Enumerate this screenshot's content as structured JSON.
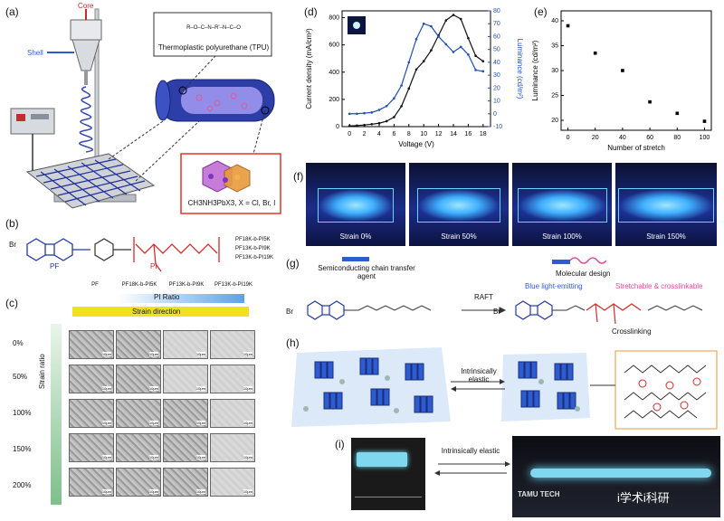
{
  "panel_labels": {
    "a": "(a)",
    "b": "(b)",
    "c": "(c)",
    "d": "(d)",
    "e": "(e)",
    "f": "(f)",
    "g": "(g)",
    "h": "(h)",
    "i": "(i)"
  },
  "panel_a": {
    "core_label": "Core",
    "shell_label": "Shell",
    "polymer_formula": "R–O–C–N–R'–N–C–O",
    "polymer_name": "Thermoplastic polyurethane (TPU)",
    "perovskite_label": "CH3NH3PbX3, X = Cl, Br, I"
  },
  "panel_b": {
    "pf_label": "PF",
    "pi_label": "PI",
    "copolymers": [
      "PF18K-b-PI5K",
      "PF13K-b-PI9K",
      "PF13K-b-PI19K"
    ]
  },
  "panel_c": {
    "column_headers": [
      "PF",
      "PF18K-b-PI5K",
      "PF13K-b-PI9K",
      "PF13K-b-PI19K"
    ],
    "pi_ratio_label": "PI Ratio",
    "strain_direction_label": "Strain direction",
    "strain_ratio_label": "Strain ratio",
    "rows": [
      "0%",
      "50%",
      "100%",
      "150%",
      "200%"
    ],
    "scale_bar": "10μm"
  },
  "panel_f": {
    "captions": [
      "Strain 0%",
      "Strain 50%",
      "Strain 100%",
      "Strain 150%"
    ]
  },
  "panel_g": {
    "chain_transfer_label": "Semiconducting chain transfer agent",
    "molecular_design_label": "Molecular design",
    "raft_label": "RAFT",
    "blue_emitting_label": "Blue light-emitting",
    "stretchable_label": "Stretchable & crosslinkable",
    "crosslinking_label": "Crosslinking"
  },
  "panel_h": {
    "elastic_label": "Intrinsically elastic"
  },
  "panel_i": {
    "elastic_label": "Intrinsically elastic",
    "logo_text": "TAMU TECH",
    "watermark": "i学术i科研"
  },
  "colors": {
    "black_series": "#111111",
    "blue_series": "#1f4fb5",
    "pi_red": "#d12b2b",
    "panel_f_bg": "#1c2d8a"
  },
  "chart_data": [
    {
      "type": "line",
      "panel": "d",
      "xlabel": "Voltage (V)",
      "ylabel": "Current density (mA/cm²)",
      "y2label": "Luminance (cd/m²)",
      "xlim": [
        -1,
        19
      ],
      "ylim": [
        0,
        850
      ],
      "y2lim": [
        -10,
        80
      ],
      "xticks": [
        0,
        2,
        4,
        6,
        8,
        10,
        12,
        14,
        16,
        18
      ],
      "yticks": [
        0,
        200,
        400,
        600,
        800
      ],
      "y2ticks": [
        -10,
        0,
        10,
        20,
        30,
        40,
        50,
        60,
        70,
        80
      ],
      "series": [
        {
          "axis": "left",
          "x": [
            0,
            1,
            2,
            3,
            4,
            5,
            6,
            7,
            8,
            9,
            10,
            11,
            12,
            13,
            14,
            15,
            16,
            17,
            18
          ],
          "y": [
            5,
            8,
            12,
            18,
            25,
            40,
            70,
            150,
            280,
            420,
            480,
            560,
            670,
            780,
            820,
            790,
            650,
            520,
            480
          ]
        },
        {
          "axis": "right",
          "x": [
            0,
            1,
            2,
            3,
            4,
            5,
            6,
            7,
            8,
            9,
            10,
            11,
            12,
            13,
            14,
            15,
            16,
            17,
            18
          ],
          "y": [
            0,
            0,
            0.5,
            1,
            3,
            6,
            12,
            22,
            40,
            58,
            70,
            68,
            60,
            54,
            48,
            52,
            46,
            34,
            33
          ]
        }
      ]
    },
    {
      "type": "scatter",
      "panel": "e",
      "xlabel": "Number of stretch",
      "ylabel": "Luminance (cd/m²)",
      "xlim": [
        -5,
        105
      ],
      "ylim": [
        18,
        42
      ],
      "xticks": [
        0,
        20,
        40,
        60,
        80,
        100
      ],
      "yticks": [
        20,
        25,
        30,
        35,
        40
      ],
      "x": [
        0,
        20,
        40,
        60,
        80,
        100
      ],
      "y": [
        39,
        33.5,
        30,
        23.7,
        21.4,
        19.8
      ]
    }
  ]
}
